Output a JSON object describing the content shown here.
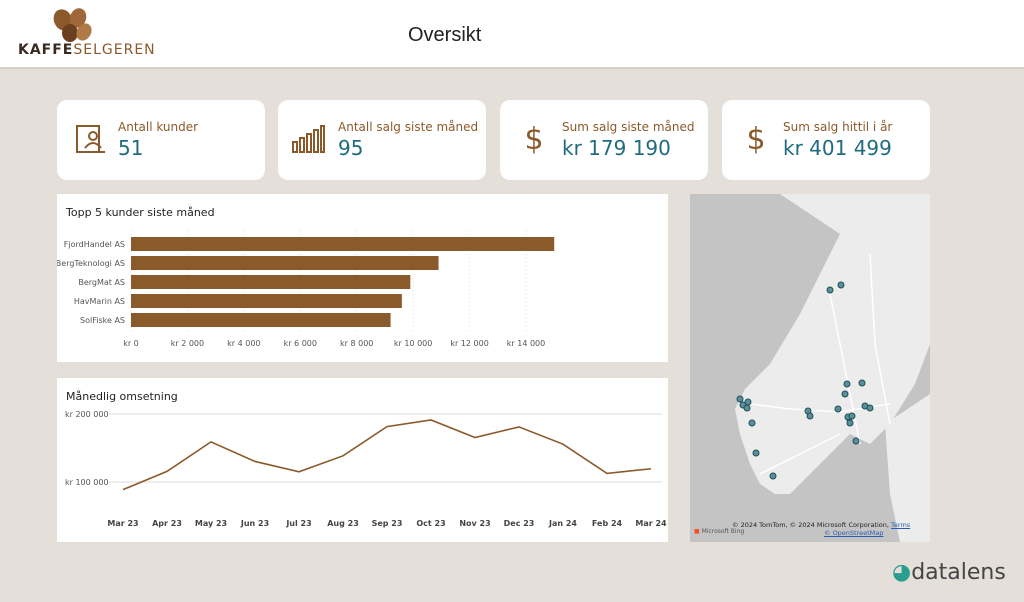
{
  "brand": {
    "name_part1": "KAFFE",
    "name_part2": "SELGEREN"
  },
  "header": {
    "title": "Oversikt"
  },
  "kpis": [
    {
      "label": "Antall kunder",
      "value": "51",
      "icon": "contact-card-icon"
    },
    {
      "label": "Antall salg siste måned",
      "value": "95",
      "icon": "bar-chart-icon"
    },
    {
      "label": "Sum salg siste måned",
      "value": "kr 179 190",
      "icon": "dollar-icon"
    },
    {
      "label": "Sum salg hittil i år",
      "value": "kr 401 499",
      "icon": "dollar-icon"
    }
  ],
  "accent": "#8b5a2b",
  "value_color": "#1f6b80",
  "chart_data": [
    {
      "type": "bar",
      "orientation": "horizontal",
      "title": "Topp 5 kunder siste måned",
      "categories": [
        "FjordHandel AS",
        "BergTeknologi AS",
        "BergMat AS",
        "HavMarin AS",
        "SolFiske AS"
      ],
      "values": [
        15000,
        10900,
        9900,
        9600,
        9200
      ],
      "xlim": [
        0,
        15000
      ],
      "xticks": [
        "kr 0",
        "kr 2 000",
        "kr 4 000",
        "kr 6 000",
        "kr 8 000",
        "kr 10 000",
        "kr 12 000",
        "kr 14 000"
      ],
      "grid": true,
      "color": "#8b5a2b"
    },
    {
      "type": "line",
      "title": "Månedlig omsetning",
      "categories": [
        "Mar 23",
        "Apr 23",
        "May 23",
        "Jun 23",
        "Jul 23",
        "Aug 23",
        "Sep 23",
        "Oct 23",
        "Nov 23",
        "Dec 23",
        "Jan 24",
        "Feb 24",
        "Mar 24"
      ],
      "values": [
        88800,
        115600,
        159000,
        130200,
        115100,
        138500,
        181500,
        191200,
        165400,
        181000,
        155600,
        112700,
        119500
      ],
      "yticks": [
        "kr 100 000",
        "kr 200 000"
      ],
      "grid": true,
      "color": "#8b5a2b"
    }
  ],
  "map": {
    "attribution": "© 2024 TomTom, © 2024 Microsoft Corporation,",
    "terms": "Terms",
    "osm": "© OpenStreetMap",
    "provider": "Microsoft Bing"
  },
  "footer": {
    "brand": "datalens"
  }
}
